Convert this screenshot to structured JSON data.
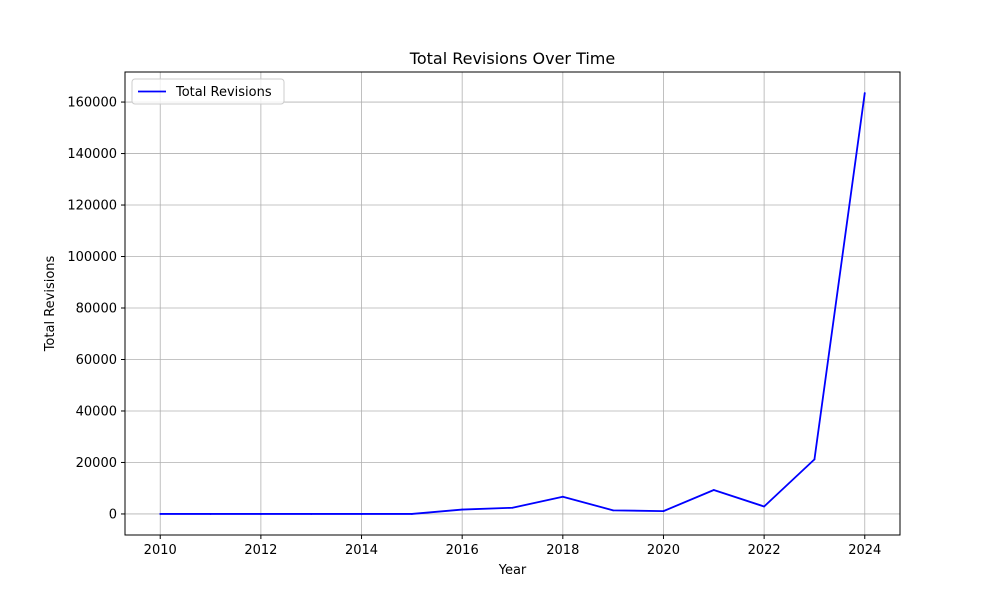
{
  "chart_data": {
    "type": "line",
    "title": "Total Revisions Over Time",
    "xlabel": "Year",
    "ylabel": "Total Revisions",
    "x": [
      2010,
      2011,
      2012,
      2013,
      2014,
      2015,
      2016,
      2017,
      2018,
      2019,
      2020,
      2021,
      2022,
      2023,
      2024
    ],
    "series": [
      {
        "name": "Total Revisions",
        "color": "#0000ff",
        "values": [
          0,
          0,
          0,
          0,
          0,
          0,
          1700,
          2400,
          6700,
          1400,
          1100,
          9300,
          2900,
          21200,
          163500
        ]
      }
    ],
    "xlim": [
      2009.3,
      2024.7
    ],
    "ylim": [
      -8175,
      171675
    ],
    "xticks": [
      2010,
      2012,
      2014,
      2016,
      2018,
      2020,
      2022,
      2024
    ],
    "yticks": [
      0,
      20000,
      40000,
      60000,
      80000,
      100000,
      120000,
      140000,
      160000
    ],
    "grid": true,
    "legend_position": "upper-left"
  }
}
